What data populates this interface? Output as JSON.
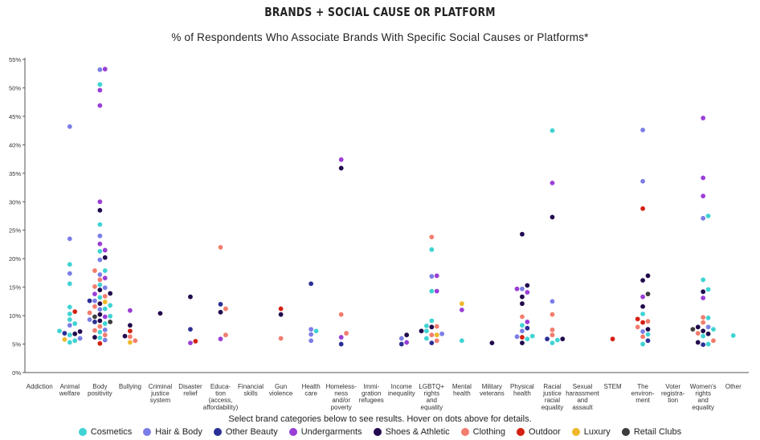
{
  "header": {
    "title": "BRANDS + SOCIAL CAUSE OR PLATFORM",
    "subtitle": "% of Respondents Who Associate Brands With Specific Social Causes or Platforms*"
  },
  "footer": {
    "instructions": "Select brand categories below to see results. Hover on dots above for details."
  },
  "legend": [
    {
      "label": "Cosmetics",
      "color": "#3fd3d3"
    },
    {
      "label": "Hair & Body",
      "color": "#7b7ee6"
    },
    {
      "label": "Other Beauty",
      "color": "#2b2f95"
    },
    {
      "label": "Undergarments",
      "color": "#9a3fd6"
    },
    {
      "label": "Shoes & Athletic",
      "color": "#210a4d"
    },
    {
      "label": "Clothing",
      "color": "#f27d6e"
    },
    {
      "label": "Outdoor",
      "color": "#d42012"
    },
    {
      "label": "Luxury",
      "color": "#f0b82a"
    },
    {
      "label": "Retail Clubs",
      "color": "#3c3c3c"
    }
  ],
  "chart_data": {
    "type": "scatter",
    "title": "BRANDS + SOCIAL CAUSE OR PLATFORM",
    "subtitle": "% of Respondents Who Associate Brands With Specific Social Causes or Platforms*",
    "ylim": [
      0,
      55
    ],
    "yticks": [
      "0%",
      "5%",
      "10%",
      "15%",
      "20%",
      "25%",
      "30%",
      "35%",
      "40%",
      "45%",
      "50%",
      "55%"
    ],
    "grid": false,
    "legend_position": "bottom",
    "categories": [
      [
        "Addiction"
      ],
      [
        "Animal",
        "welfare"
      ],
      [
        "Body",
        "positivity"
      ],
      [
        "Bullying"
      ],
      [
        "Criminal",
        "justice",
        "system"
      ],
      [
        "Disaster",
        "relief"
      ],
      [
        "Educa-",
        "tion",
        "(access,",
        "affordability)"
      ],
      [
        "Financial",
        "skills"
      ],
      [
        "Gun",
        "violence"
      ],
      [
        "Health",
        "care"
      ],
      [
        "Homeless-",
        "ness",
        "and/or",
        "poverty"
      ],
      [
        "Immi-",
        "gration",
        "refugees"
      ],
      [
        "Income",
        "inequality"
      ],
      [
        "LGBTQ+",
        "rights",
        "and",
        "equality"
      ],
      [
        "Mental",
        "health"
      ],
      [
        "Military",
        "veterans"
      ],
      [
        "Physical",
        "health"
      ],
      [
        "Racial",
        "justice",
        "racial",
        "equality"
      ],
      [
        "Sexual",
        "harassment",
        "and",
        "assault"
      ],
      [
        "STEM"
      ],
      [
        "The",
        "environ-",
        "ment"
      ],
      [
        "Voter",
        "registra-",
        "tion"
      ],
      [
        "Women's",
        "rights",
        "and",
        "equality"
      ],
      [
        "Other"
      ]
    ],
    "series": [
      {
        "name": "Cosmetics",
        "color": "#3fd3d3",
        "points": [
          [
            1,
            5.3
          ],
          [
            1,
            5.6
          ],
          [
            1,
            6.6
          ],
          [
            1,
            7.3
          ],
          [
            1,
            8.6
          ],
          [
            1,
            9.3
          ],
          [
            1,
            10.3
          ],
          [
            1,
            11.5
          ],
          [
            1,
            15.6
          ],
          [
            1,
            19.0
          ],
          [
            2,
            6.1
          ],
          [
            2,
            7.1
          ],
          [
            2,
            8.6
          ],
          [
            2,
            9.9
          ],
          [
            2,
            11.2
          ],
          [
            2,
            11.8
          ],
          [
            2,
            13.2
          ],
          [
            2,
            15.4
          ],
          [
            2,
            17.9
          ],
          [
            2,
            21.3
          ],
          [
            2,
            26.0
          ],
          [
            2,
            50.6
          ],
          [
            9,
            7.3
          ],
          [
            13,
            6.0
          ],
          [
            13,
            7.3
          ],
          [
            13,
            8.2
          ],
          [
            13,
            9.1
          ],
          [
            13,
            14.3
          ],
          [
            13,
            21.6
          ],
          [
            14,
            5.6
          ],
          [
            16,
            5.9
          ],
          [
            16,
            6.4
          ],
          [
            16,
            8.3
          ],
          [
            17,
            5.2
          ],
          [
            17,
            5.7
          ],
          [
            17,
            42.5
          ],
          [
            20,
            5.0
          ],
          [
            20,
            6.7
          ],
          [
            20,
            10.3
          ],
          [
            22,
            5.0
          ],
          [
            22,
            6.4
          ],
          [
            22,
            7.6
          ],
          [
            22,
            9.6
          ],
          [
            22,
            14.6
          ],
          [
            22,
            16.3
          ],
          [
            22,
            27.5
          ],
          [
            23,
            6.5
          ]
        ]
      },
      {
        "name": "Hair & Body",
        "color": "#7b7ee6",
        "points": [
          [
            1,
            6.0
          ],
          [
            1,
            8.3
          ],
          [
            1,
            17.4
          ],
          [
            1,
            23.5
          ],
          [
            1,
            43.2
          ],
          [
            2,
            5.7
          ],
          [
            2,
            7.5
          ],
          [
            2,
            9.3
          ],
          [
            2,
            11.1
          ],
          [
            2,
            12.6
          ],
          [
            2,
            14.9
          ],
          [
            2,
            17.2
          ],
          [
            2,
            19.8
          ],
          [
            2,
            24.0
          ],
          [
            2,
            53.2
          ],
          [
            9,
            5.6
          ],
          [
            9,
            6.7
          ],
          [
            9,
            7.6
          ],
          [
            12,
            6.0
          ],
          [
            13,
            6.8
          ],
          [
            13,
            16.9
          ],
          [
            16,
            6.3
          ],
          [
            16,
            7.3
          ],
          [
            16,
            14.7
          ],
          [
            17,
            12.5
          ],
          [
            20,
            7.2
          ],
          [
            20,
            33.6
          ],
          [
            20,
            42.6
          ],
          [
            22,
            8.0
          ],
          [
            22,
            27.1
          ]
        ]
      },
      {
        "name": "Other Beauty",
        "color": "#2b2f95",
        "points": [
          [
            1,
            6.9
          ],
          [
            2,
            8.9
          ],
          [
            2,
            12.6
          ],
          [
            5,
            7.6
          ],
          [
            6,
            12.0
          ],
          [
            9,
            15.6
          ],
          [
            10,
            5.0
          ],
          [
            12,
            5.0
          ],
          [
            13,
            5.2
          ],
          [
            16,
            7.8
          ],
          [
            17,
            5.9
          ],
          [
            20,
            5.6
          ],
          [
            22,
            4.9
          ]
        ]
      },
      {
        "name": "Undergarments",
        "color": "#9a3fd6",
        "points": [
          [
            2,
            9.8
          ],
          [
            2,
            13.8
          ],
          [
            2,
            16.6
          ],
          [
            2,
            21.5
          ],
          [
            2,
            22.6
          ],
          [
            2,
            30.0
          ],
          [
            2,
            46.9
          ],
          [
            2,
            49.6
          ],
          [
            2,
            53.3
          ],
          [
            3,
            10.9
          ],
          [
            5,
            5.2
          ],
          [
            6,
            5.9
          ],
          [
            10,
            6.2
          ],
          [
            10,
            37.4
          ],
          [
            12,
            5.3
          ],
          [
            13,
            14.3
          ],
          [
            13,
            17.0
          ],
          [
            14,
            11.0
          ],
          [
            16,
            8.9
          ],
          [
            16,
            14.1
          ],
          [
            16,
            14.7
          ],
          [
            17,
            33.3
          ],
          [
            20,
            13.3
          ],
          [
            22,
            13.1
          ],
          [
            22,
            31.0
          ],
          [
            22,
            34.2
          ],
          [
            22,
            44.7
          ]
        ]
      },
      {
        "name": "Shoes & Athletic",
        "color": "#210a4d",
        "points": [
          [
            1,
            6.8
          ],
          [
            1,
            7.2
          ],
          [
            2,
            6.2
          ],
          [
            2,
            9.1
          ],
          [
            2,
            10.2
          ],
          [
            2,
            12.1
          ],
          [
            2,
            13.9
          ],
          [
            2,
            14.5
          ],
          [
            2,
            20.2
          ],
          [
            2,
            28.5
          ],
          [
            3,
            6.4
          ],
          [
            3,
            8.3
          ],
          [
            4,
            10.4
          ],
          [
            5,
            13.3
          ],
          [
            6,
            10.6
          ],
          [
            8,
            10.2
          ],
          [
            10,
            35.9
          ],
          [
            12,
            6.6
          ],
          [
            13,
            7.3
          ],
          [
            13,
            8.0
          ],
          [
            15,
            5.2
          ],
          [
            16,
            5.2
          ],
          [
            16,
            12.1
          ],
          [
            16,
            13.3
          ],
          [
            16,
            15.3
          ],
          [
            16,
            24.3
          ],
          [
            17,
            5.9
          ],
          [
            17,
            27.3
          ],
          [
            20,
            7.6
          ],
          [
            20,
            11.6
          ],
          [
            20,
            16.2
          ],
          [
            20,
            17.0
          ],
          [
            22,
            5.3
          ],
          [
            22,
            6.8
          ],
          [
            22,
            7.3
          ],
          [
            22,
            8.0
          ],
          [
            22,
            14.2
          ]
        ]
      },
      {
        "name": "Clothing",
        "color": "#f27d6e",
        "points": [
          [
            2,
            6.6
          ],
          [
            2,
            7.4
          ],
          [
            2,
            8.1
          ],
          [
            2,
            10.5
          ],
          [
            2,
            11.6
          ],
          [
            2,
            13.4
          ],
          [
            2,
            15.1
          ],
          [
            2,
            16.3
          ],
          [
            2,
            17.9
          ],
          [
            3,
            5.6
          ],
          [
            3,
            6.3
          ],
          [
            6,
            6.6
          ],
          [
            6,
            11.2
          ],
          [
            6,
            22.0
          ],
          [
            8,
            6.0
          ],
          [
            10,
            6.9
          ],
          [
            10,
            10.2
          ],
          [
            13,
            5.6
          ],
          [
            13,
            6.6
          ],
          [
            13,
            8.1
          ],
          [
            13,
            23.8
          ],
          [
            16,
            9.8
          ],
          [
            17,
            6.6
          ],
          [
            17,
            7.5
          ],
          [
            17,
            10.2
          ],
          [
            20,
            6.3
          ],
          [
            20,
            8.0
          ],
          [
            20,
            9.0
          ],
          [
            22,
            5.6
          ],
          [
            22,
            6.9
          ],
          [
            22,
            8.8
          ],
          [
            22,
            9.7
          ]
        ]
      },
      {
        "name": "Outdoor",
        "color": "#d42012",
        "points": [
          [
            1,
            10.7
          ],
          [
            2,
            5.1
          ],
          [
            3,
            7.3
          ],
          [
            5,
            5.5
          ],
          [
            8,
            11.2
          ],
          [
            16,
            6.2
          ],
          [
            19,
            5.9
          ],
          [
            20,
            8.8
          ],
          [
            20,
            9.4
          ],
          [
            20,
            28.8
          ]
        ]
      },
      {
        "name": "Luxury",
        "color": "#f0b82a",
        "points": [
          [
            1,
            5.8
          ],
          [
            2,
            12.4
          ],
          [
            3,
            5.3
          ],
          [
            13,
            6.6
          ],
          [
            14,
            12.1
          ]
        ]
      },
      {
        "name": "Retail Clubs",
        "color": "#3c3c3c",
        "points": [
          [
            2,
            8.9
          ],
          [
            2,
            9.8
          ],
          [
            20,
            13.8
          ],
          [
            22,
            7.6
          ]
        ]
      }
    ]
  }
}
